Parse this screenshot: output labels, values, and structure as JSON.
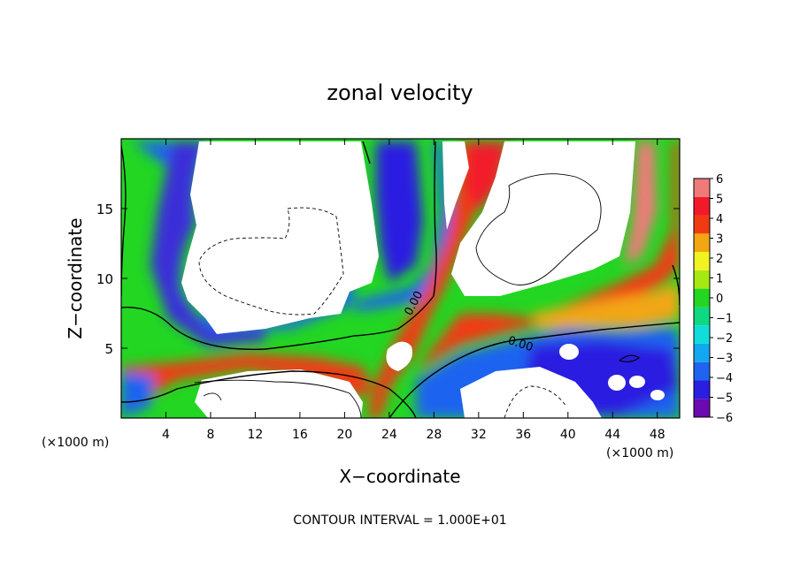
{
  "chart_data": {
    "type": "heatmap",
    "title": "zonal velocity",
    "xlabel": "X−coordinate",
    "ylabel": "Z−coordinate",
    "x_unit_left": "(×1000 m)",
    "x_unit_right": "(×1000 m)",
    "xlim": [
      0,
      50
    ],
    "ylim": [
      0,
      20
    ],
    "x_ticks": [
      4,
      8,
      12,
      16,
      20,
      24,
      28,
      32,
      36,
      40,
      44,
      48
    ],
    "y_ticks": [
      5,
      10,
      15
    ],
    "colorbar": {
      "range": [
        -6,
        6
      ],
      "ticks": [
        6,
        5,
        4,
        3,
        2,
        1,
        0,
        -1,
        -2,
        -3,
        -4,
        -5,
        -6
      ],
      "tick_labels": [
        "6",
        "5",
        "4",
        "3",
        "2",
        "1",
        "0",
        "−1",
        "−2",
        "−3",
        "−4",
        "−5",
        "−6"
      ],
      "colors_low_to_high": [
        "#6a0ab0",
        "#2a1ee0",
        "#1e64f0",
        "#12a8f0",
        "#10dcdc",
        "#10d880",
        "#22d622",
        "#a6e812",
        "#f2f222",
        "#f2a612",
        "#f23a12",
        "#f21a2a",
        "#f07a7a"
      ]
    },
    "contour_labels": [
      {
        "text": "0.00",
        "x": 27.0,
        "z": 8.2
      },
      {
        "text": "0.00",
        "x": 35.4,
        "z": 5.0
      }
    ],
    "footer": "CONTOUR INTERVAL = 1.000E+01",
    "white_regions_note_values": "out of colorbar range (|u| > 6)"
  }
}
